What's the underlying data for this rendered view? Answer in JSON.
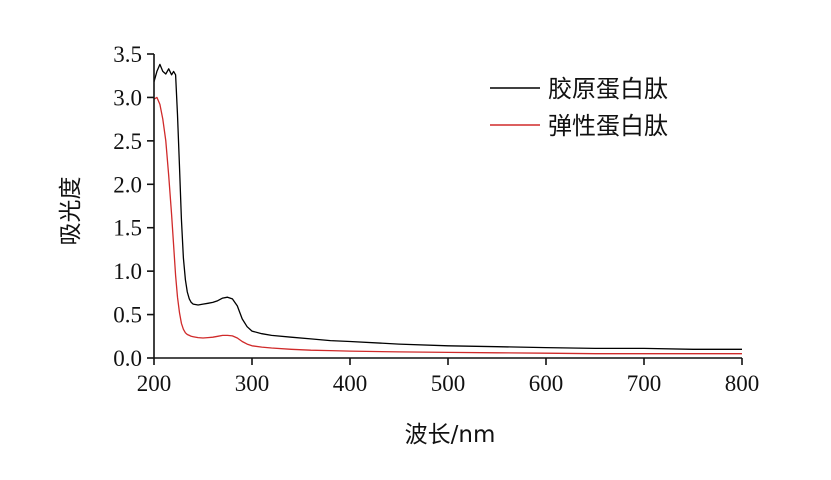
{
  "chart_data": {
    "type": "line",
    "title": "",
    "xlabel": "波长/nm",
    "ylabel": "吸光度",
    "xlim": [
      200,
      800
    ],
    "ylim": [
      0,
      3.5
    ],
    "xticks": [
      200,
      300,
      400,
      500,
      600,
      700,
      800
    ],
    "yticks": [
      0.0,
      0.5,
      1.0,
      1.5,
      2.0,
      2.5,
      3.0,
      3.5
    ],
    "xtick_labels": [
      "200",
      "300",
      "400",
      "500",
      "600",
      "700",
      "800"
    ],
    "ytick_labels": [
      "0.0",
      "0.5",
      "1.0",
      "1.5",
      "2.0",
      "2.5",
      "3.0",
      "3.5"
    ],
    "grid": false,
    "legend_position": "top-right",
    "series": [
      {
        "name": "胶原蛋白肽",
        "color": "#000000",
        "x": [
          200,
          203,
          206,
          209,
          212,
          215,
          218,
          220,
          222,
          224,
          226,
          228,
          230,
          232,
          234,
          236,
          238,
          240,
          245,
          250,
          255,
          260,
          265,
          270,
          275,
          280,
          285,
          290,
          295,
          300,
          310,
          320,
          340,
          360,
          380,
          400,
          450,
          500,
          550,
          600,
          650,
          700,
          750,
          800
        ],
        "y": [
          3.18,
          3.3,
          3.38,
          3.3,
          3.27,
          3.33,
          3.26,
          3.3,
          3.26,
          2.8,
          2.2,
          1.6,
          1.15,
          0.9,
          0.76,
          0.68,
          0.64,
          0.62,
          0.61,
          0.62,
          0.63,
          0.64,
          0.66,
          0.69,
          0.7,
          0.68,
          0.6,
          0.45,
          0.36,
          0.31,
          0.28,
          0.26,
          0.24,
          0.22,
          0.2,
          0.19,
          0.16,
          0.14,
          0.13,
          0.12,
          0.11,
          0.11,
          0.1,
          0.1
        ]
      },
      {
        "name": "弹性蛋白肽",
        "color": "#d02a2a",
        "x": [
          200,
          203,
          206,
          209,
          212,
          215,
          218,
          220,
          222,
          224,
          226,
          228,
          230,
          232,
          234,
          236,
          238,
          240,
          245,
          250,
          255,
          260,
          265,
          270,
          275,
          280,
          285,
          290,
          295,
          300,
          310,
          320,
          340,
          360,
          380,
          400,
          450,
          500,
          550,
          600,
          650,
          700,
          750,
          800
        ],
        "y": [
          2.98,
          3.0,
          2.92,
          2.75,
          2.5,
          2.1,
          1.65,
          1.3,
          0.95,
          0.7,
          0.52,
          0.4,
          0.33,
          0.29,
          0.27,
          0.26,
          0.25,
          0.245,
          0.235,
          0.23,
          0.235,
          0.24,
          0.25,
          0.26,
          0.26,
          0.255,
          0.23,
          0.19,
          0.16,
          0.14,
          0.125,
          0.115,
          0.1,
          0.09,
          0.085,
          0.08,
          0.07,
          0.065,
          0.06,
          0.055,
          0.05,
          0.05,
          0.05,
          0.05
        ]
      }
    ]
  }
}
